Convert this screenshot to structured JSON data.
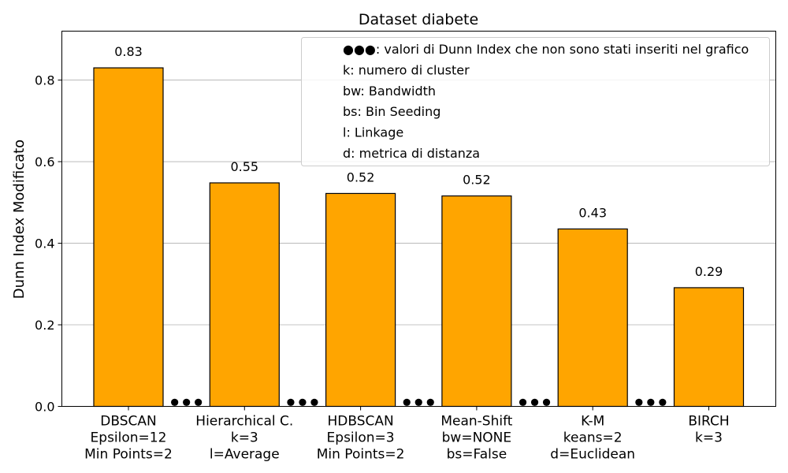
{
  "chart_data": {
    "type": "bar",
    "title": "Dataset diabete",
    "xlabel": "",
    "ylabel": "Dunn Index Modificato",
    "ylim": [
      0,
      0.92
    ],
    "yticks": [
      "0.0",
      "0.2",
      "0.4",
      "0.6",
      "0.8"
    ],
    "grid": "horizontal",
    "bar_color": "#FFA500",
    "bar_edge_color": "#000000",
    "categories": [
      [
        "DBSCAN",
        "Epsilon=12",
        "Min Points=2"
      ],
      [
        "Hierarchical C.",
        "k=3",
        "l=Average"
      ],
      [
        "HDBSCAN",
        "Epsilon=3",
        "Min Points=2"
      ],
      [
        "Mean-Shift",
        "bw=NONE",
        "bs=False"
      ],
      [
        "K-M",
        "keans=2",
        "d=Euclidean"
      ],
      [
        "BIRCH",
        "k=3"
      ]
    ],
    "values": [
      0.83,
      0.548,
      0.522,
      0.516,
      0.435,
      0.291
    ],
    "value_labels": [
      "0.83",
      "0.55",
      "0.52",
      "0.52",
      "0.43",
      "0.29"
    ],
    "ellipsis_value": 0.01,
    "legend_position": "top-right",
    "legend": [
      "●●●: valori di Dunn Index che non sono stati inseriti nel grafico",
      "k: numero di cluster",
      "bw: Bandwidth",
      "bs: Bin Seeding",
      "l: Linkage",
      "d: metrica di distanza"
    ]
  }
}
